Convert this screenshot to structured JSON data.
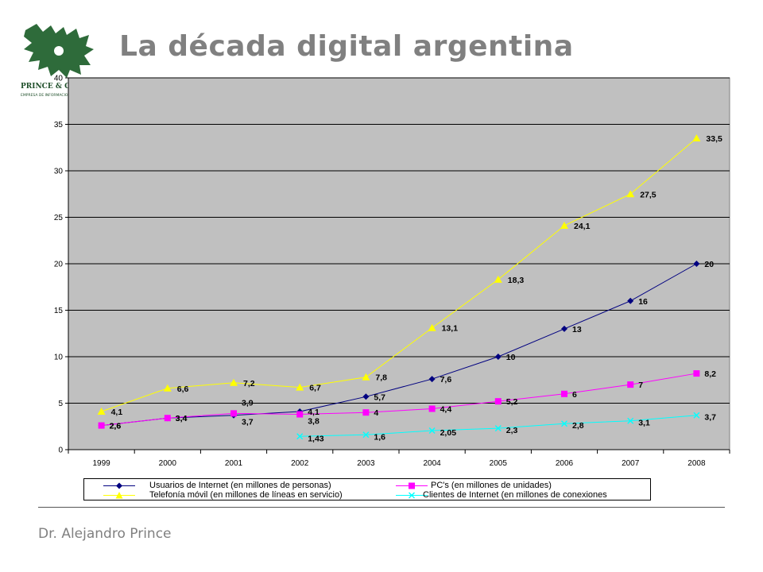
{
  "header": {
    "title": "La década digital argentina"
  },
  "logo": {
    "icon": "dragon-logo-icon",
    "brand_text": "PRINCE & C",
    "tagline": "EMPRESA DE INFORMACION"
  },
  "footer": {
    "author": "Dr. Alejandro Prince"
  },
  "colors": {
    "plot_bg": "#C0C0C0",
    "usuarios": "#000080",
    "pcs": "#FF00FF",
    "telefonia": "#FFFF00",
    "clientes": "#00FFFF",
    "title": "#808080"
  },
  "chart_data": {
    "type": "line",
    "title": "",
    "xlabel": "",
    "ylabel": "",
    "x": [
      "1999",
      "2000",
      "2001",
      "2002",
      "2003",
      "2004",
      "2005",
      "2006",
      "2007",
      "2008"
    ],
    "ylim": [
      0,
      40
    ],
    "yticks": [
      0,
      5,
      10,
      15,
      20,
      25,
      30,
      35,
      40
    ],
    "grid": true,
    "legend_position": "bottom",
    "series": [
      {
        "name": "Usuarios de Internet  (en millones de personas)",
        "marker": "diamond",
        "color": "#000080",
        "values": [
          2.6,
          3.4,
          3.7,
          4.1,
          5.7,
          7.6,
          10,
          13,
          16,
          20
        ],
        "labels": [
          "2,6",
          "3,4",
          "3,7",
          "4,1",
          "5,7",
          "7,6",
          "10",
          "13",
          "16",
          "20"
        ]
      },
      {
        "name": "PC's (en millones de unidades)",
        "marker": "square",
        "color": "#FF00FF",
        "values": [
          2.6,
          3.4,
          3.9,
          3.8,
          4,
          4.4,
          5.2,
          6,
          7,
          8.2
        ],
        "labels": [
          "2,6",
          "3,4",
          "3,9",
          "3,8",
          "4",
          "4,4",
          "5,2",
          "6",
          "7",
          "8,2"
        ]
      },
      {
        "name": "Telefonía móvil (en millones de líneas en servicio)",
        "marker": "triangle",
        "color": "#FFFF00",
        "values": [
          4.1,
          6.6,
          7.2,
          6.7,
          7.8,
          13.1,
          18.3,
          24.1,
          27.5,
          33.5
        ],
        "labels": [
          "4,1",
          "6,6",
          "7,2",
          "6,7",
          "7,8",
          "13,1",
          "18,3",
          "24,1",
          "27,5",
          "33,5"
        ]
      },
      {
        "name": "Clientes de Internet (en millones de conexiones",
        "marker": "x",
        "color": "#00FFFF",
        "values": [
          null,
          null,
          null,
          1.43,
          1.6,
          2.05,
          2.3,
          2.8,
          3.1,
          3.7
        ],
        "labels": [
          null,
          null,
          null,
          "1,43",
          "1,6",
          "2,05",
          "2,3",
          "2,8",
          "3,1",
          "3,7"
        ]
      }
    ]
  }
}
